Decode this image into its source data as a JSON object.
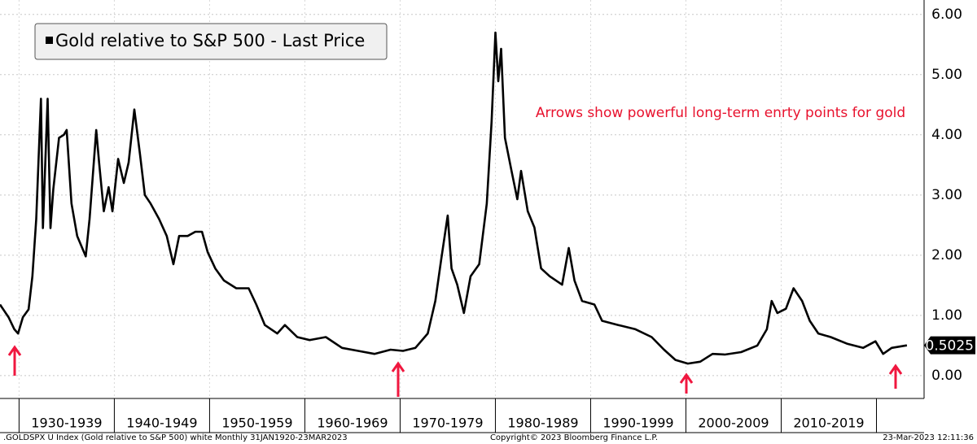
{
  "chart_data": {
    "type": "line",
    "series": [
      {
        "name": "Gold relative to S&P 500 - Last Price",
        "color": "#000000",
        "x": [
          1928.0,
          1928.9,
          1929.5,
          1929.9,
          1930.4,
          1931.0,
          1931.4,
          1931.8,
          1932.3,
          1932.5,
          1933.0,
          1933.3,
          1933.6,
          1934.2,
          1934.7,
          1935.0,
          1935.5,
          1936.1,
          1937.0,
          1937.4,
          1938.1,
          1938.4,
          1938.9,
          1939.4,
          1939.8,
          1940.4,
          1941.0,
          1941.5,
          1942.1,
          1942.7,
          1943.2,
          1943.8,
          1944.7,
          1945.5,
          1946.2,
          1946.8,
          1947.7,
          1948.5,
          1949.2,
          1949.8,
          1950.6,
          1951.5,
          1952.8,
          1954.1,
          1954.9,
          1955.8,
          1957.1,
          1957.9,
          1959.2,
          1960.5,
          1962.2,
          1963.9,
          1965.6,
          1967.3,
          1969.0,
          1970.3,
          1971.6,
          1972.9,
          1973.7,
          1974.3,
          1975.0,
          1975.4,
          1976.0,
          1976.7,
          1977.4,
          1978.3,
          1979.1,
          1979.6,
          1980.0,
          1980.3,
          1980.6,
          1981.0,
          1981.7,
          1982.3,
          1982.7,
          1983.4,
          1984.1,
          1984.8,
          1985.7,
          1987.0,
          1987.7,
          1988.3,
          1989.1,
          1990.4,
          1991.2,
          1992.9,
          1994.7,
          1996.4,
          1997.7,
          1998.9,
          2000.2,
          2001.5,
          2002.8,
          2004.1,
          2005.8,
          2007.5,
          2008.5,
          2009.0,
          2009.6,
          2010.5,
          2011.3,
          2012.2,
          2013.0,
          2013.9,
          2015.2,
          2016.9,
          2018.6,
          2019.9,
          2020.7,
          2021.6,
          2023.2
        ],
        "values": [
          1.18,
          0.97,
          0.77,
          0.7,
          0.97,
          1.1,
          1.65,
          2.6,
          4.6,
          2.45,
          4.6,
          2.45,
          3.1,
          3.95,
          4.0,
          4.08,
          2.86,
          2.32,
          1.98,
          2.6,
          4.08,
          3.54,
          2.73,
          3.13,
          2.73,
          3.6,
          3.2,
          3.54,
          4.42,
          3.67,
          3.0,
          2.86,
          2.6,
          2.32,
          1.85,
          2.32,
          2.32,
          2.39,
          2.39,
          2.05,
          1.78,
          1.58,
          1.45,
          1.45,
          1.18,
          0.84,
          0.7,
          0.84,
          0.64,
          0.59,
          0.64,
          0.46,
          0.41,
          0.36,
          0.43,
          0.41,
          0.46,
          0.7,
          1.24,
          1.92,
          2.66,
          1.78,
          1.51,
          1.04,
          1.65,
          1.85,
          2.86,
          4.22,
          5.7,
          4.89,
          5.43,
          3.95,
          3.4,
          2.93,
          3.4,
          2.73,
          2.46,
          1.78,
          1.65,
          1.51,
          2.12,
          1.58,
          1.24,
          1.18,
          0.91,
          0.84,
          0.77,
          0.64,
          0.43,
          0.26,
          0.2,
          0.23,
          0.36,
          0.35,
          0.39,
          0.5,
          0.77,
          1.24,
          1.04,
          1.11,
          1.45,
          1.24,
          0.91,
          0.7,
          0.64,
          0.53,
          0.46,
          0.57,
          0.36,
          0.46,
          0.5025
        ]
      }
    ],
    "xlim": [
      1928,
      2025
    ],
    "xticks": [
      {
        "value": 1930,
        "label": "1930-1939"
      },
      {
        "value": 1940,
        "label": "1940-1949"
      },
      {
        "value": 1950,
        "label": "1950-1959"
      },
      {
        "value": 1960,
        "label": "1960-1969"
      },
      {
        "value": 1970,
        "label": "1970-1979"
      },
      {
        "value": 1980,
        "label": "1980-1989"
      },
      {
        "value": 1990,
        "label": "1990-1999"
      },
      {
        "value": 2000,
        "label": "2000-2009"
      },
      {
        "value": 2010,
        "label": "2010-2019"
      }
    ],
    "ylim": [
      -0.38,
      6.24
    ],
    "yticks": [
      {
        "value": 0,
        "label": "0.00"
      },
      {
        "value": 1,
        "label": "1.00"
      },
      {
        "value": 2,
        "label": "2.00"
      },
      {
        "value": 3,
        "label": "3.00"
      },
      {
        "value": 4,
        "label": "4.00"
      },
      {
        "value": 5,
        "label": "5.00"
      },
      {
        "value": 6,
        "label": "6.00"
      }
    ],
    "grid": true,
    "annotation": "Arrows show powerful long-term enrty points for gold",
    "footer_left": ".GOLDSPX U Index (Gold relative to S&P 500) white  Monthly 31JAN1920-23MAR2023",
    "footer_center": "Copyright© 2023 Bloomberg Finance L.P.",
    "footer_right": "23-Mar-2023 12:11:36"
  }
}
